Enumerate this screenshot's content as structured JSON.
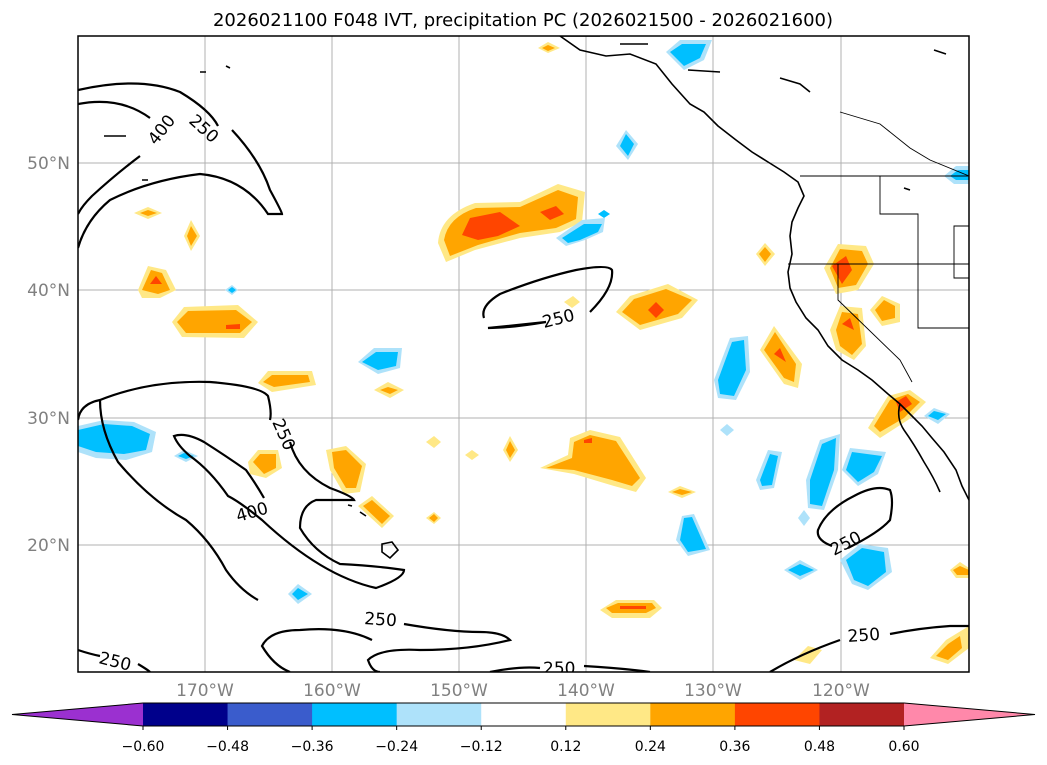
{
  "title": "2026021100 F048 IVT, precipitation PC (2026021500 - 2026021600)",
  "lat_labels": [
    "50°N",
    "40°N",
    "30°N",
    "20°N"
  ],
  "lon_labels": [
    "170°W",
    "160°W",
    "150°W",
    "140°W",
    "130°W",
    "120°W"
  ],
  "colorbar": {
    "colors": [
      "#9b30d0",
      "#00008b",
      "#3a5ccc",
      "#00bfff",
      "#aee2fa",
      "#ffffff",
      "#ffe886",
      "#ffa500",
      "#ff4500",
      "#b22222",
      "#ff88aa"
    ],
    "tick_labels": [
      "−0.60",
      "−0.48",
      "−0.36",
      "−0.24",
      "−0.12",
      "0.12",
      "0.24",
      "0.36",
      "0.48",
      "0.60"
    ]
  },
  "contour_labels": {
    "nw_400": "400",
    "nw_250": "250",
    "center_250": "250",
    "hawaii_250": "250",
    "hawaii_400": "400",
    "south_250": "250",
    "sw_250": "250",
    "bottom_250": "250",
    "se_250": "250",
    "e_250": "250"
  }
}
